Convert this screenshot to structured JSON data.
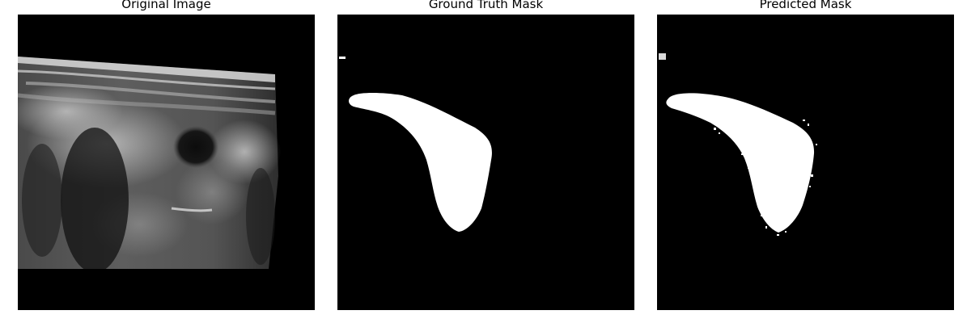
{
  "figure": {
    "background": "#ffffff",
    "panels": [
      {
        "title": "Original Image",
        "content": "grayscale ultrasound scan"
      },
      {
        "title": "Ground Truth Mask",
        "content": "binary segmentation mask"
      },
      {
        "title": "Predicted Mask",
        "content": "binary segmentation mask"
      }
    ]
  }
}
